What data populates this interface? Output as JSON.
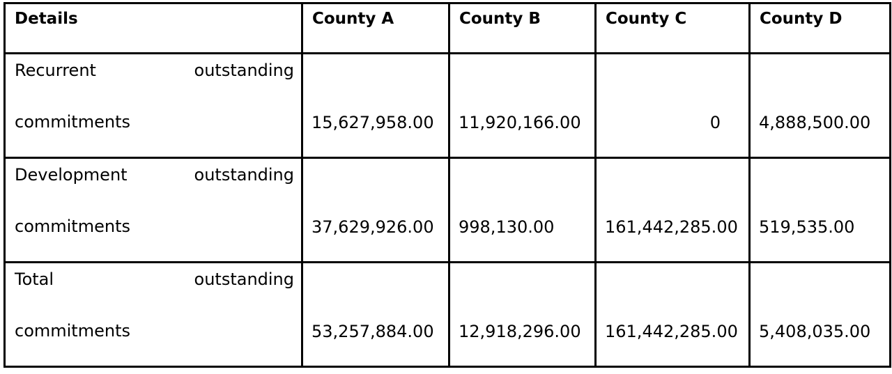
{
  "table": {
    "headers": [
      "Details",
      "County A",
      "County B",
      "County C",
      "County D"
    ],
    "rows": [
      {
        "label_first": "Recurrent",
        "label_mid": "outstanding",
        "label_second": "commitments",
        "values": [
          "15,627,958.00",
          "11,920,166.00",
          "0",
          "4,888,500.00"
        ]
      },
      {
        "label_first": "Development",
        "label_mid": "outstanding",
        "label_second": "commitments",
        "values": [
          "37,629,926.00",
          "998,130.00",
          "161,442,285.00",
          "519,535.00"
        ]
      },
      {
        "label_first": "Total",
        "label_mid": "outstanding",
        "label_second": "commitments",
        "values": [
          "53,257,884.00",
          "12,918,296.00",
          "161,442,285.00",
          "5,408,035.00"
        ]
      }
    ]
  }
}
